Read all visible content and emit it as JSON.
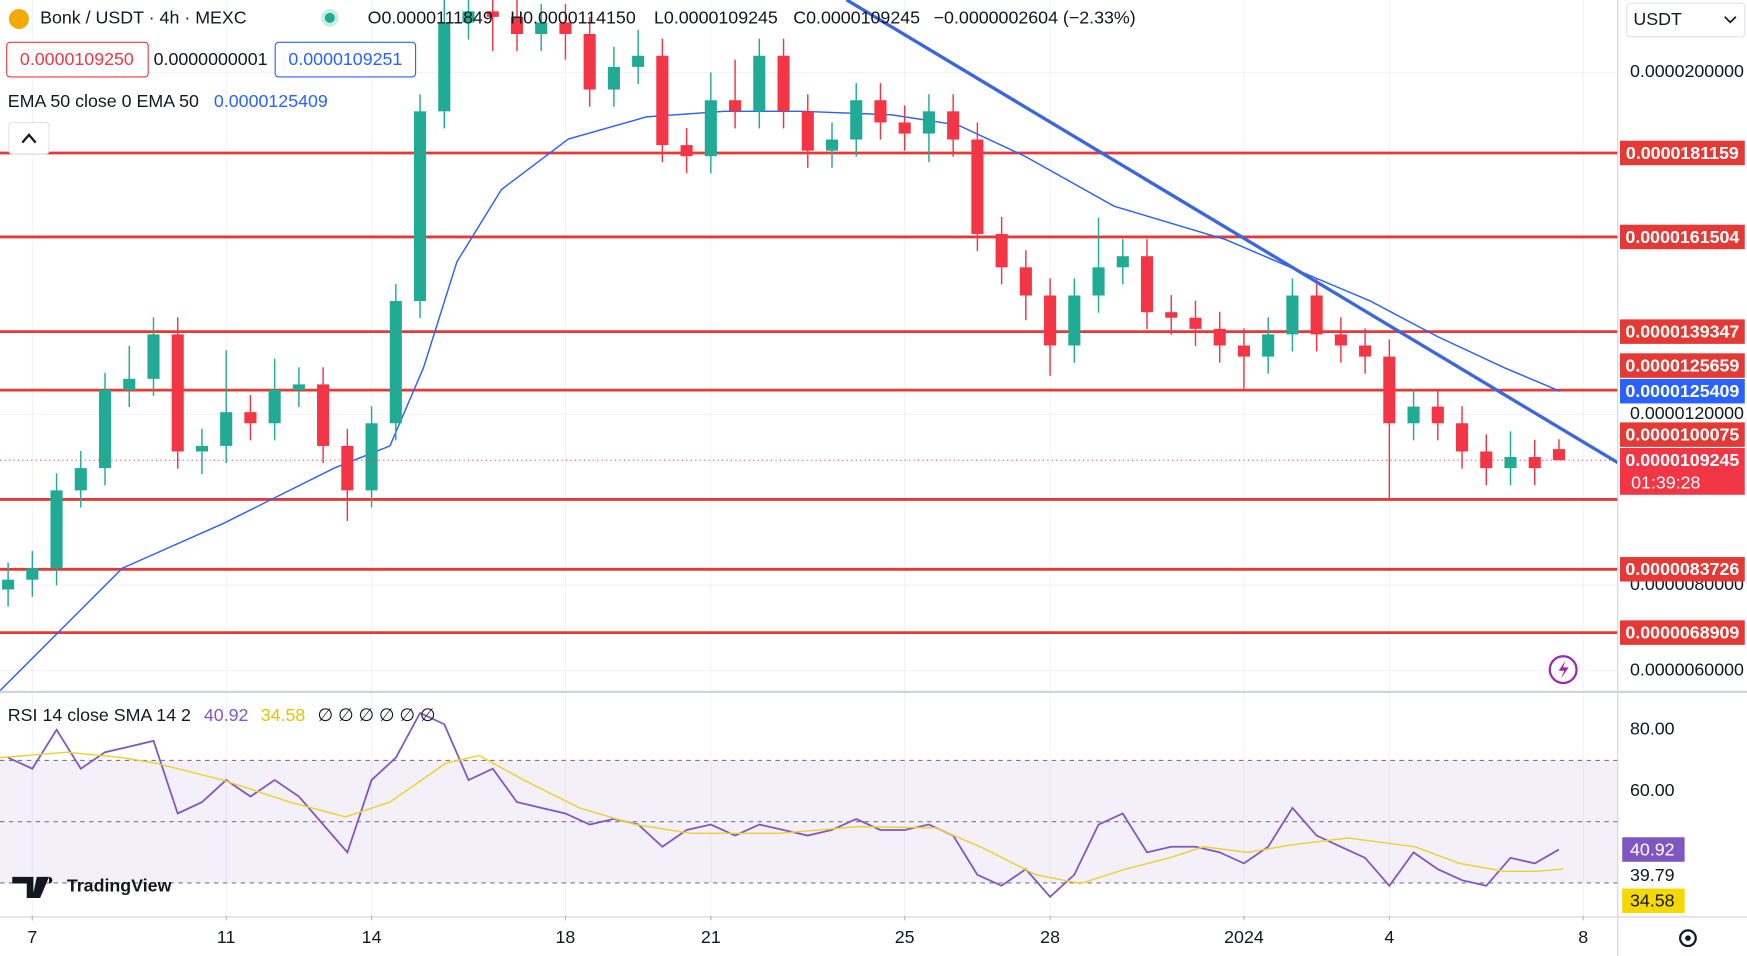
{
  "header": {
    "symbol": "Bonk / USDT · 4h · MEXC",
    "ohlc": [
      "O0.0000111849",
      "H0.0000114150",
      "L0.0000109245",
      "C0.0000109245",
      "−0.0000002604 (−2.33%)"
    ],
    "sell_price": "0.0000109250",
    "spread": "0.0000000001",
    "buy_price": "0.0000109251",
    "currency": "USDT",
    "logo": "TradingView"
  },
  "chart_data": [
    {
      "type": "candlestick",
      "legend": "EMA 50 close 0 EMA 50",
      "up_color": "#22ab94",
      "down_color": "#f23645",
      "grid": true,
      "xlim": [
        6.333,
        39.713
      ],
      "ylim": [
        5.529e-06,
        2.1695e-05
      ],
      "yticks": [
        {
          "value": 2e-05,
          "label": "0.0000200000"
        },
        {
          "value": 1.2e-05,
          "label": "0.0000120000"
        },
        {
          "value": 8e-06,
          "label": "0.0000080000"
        },
        {
          "value": 6e-06,
          "label": "0.0000060000"
        }
      ],
      "x": [
        6.5,
        7,
        7.5,
        8,
        8.5,
        9,
        9.5,
        10,
        10.5,
        11,
        11.5,
        12,
        12.5,
        13,
        13.5,
        14,
        14.5,
        15,
        15.5,
        16,
        16.5,
        17,
        17.5,
        18,
        18.5,
        19,
        19.5,
        20,
        20.5,
        21,
        21.5,
        22,
        22.5,
        23,
        23.5,
        24,
        24.5,
        25,
        25.5,
        26,
        26.5,
        27,
        27.5,
        28,
        28.5,
        29,
        29.5,
        30,
        30.5,
        31,
        31.5,
        32,
        32.5,
        33,
        33.5,
        34,
        34.5,
        35,
        35.5,
        36,
        36.5,
        37,
        37.5,
        38,
        38.5
      ],
      "open": [
        7.9e-06,
        8.13e-06,
        8.4e-06,
        1.022e-05,
        1.074e-05,
        1.257e-05,
        1.283e-05,
        1.387e-05,
        1.113e-05,
        1.126e-05,
        1.205e-05,
        1.179e-05,
        1.257e-05,
        1.27e-05,
        1.126e-05,
        1.022e-05,
        1.179e-05,
        1.465e-05,
        1.909e-05,
        2.117e-05,
        2.143e-05,
        2.13e-05,
        2.09e-05,
        2.117e-05,
        2.09e-05,
        1.96e-05,
        2.013e-05,
        2.039e-05,
        1.83e-05,
        1.804e-05,
        1.935e-05,
        1.909e-05,
        2.039e-05,
        1.909e-05,
        1.817e-05,
        1.843e-05,
        1.935e-05,
        1.883e-05,
        1.857e-05,
        1.909e-05,
        1.843e-05,
        1.622e-05,
        1.544e-05,
        1.478e-05,
        1.361e-05,
        1.478e-05,
        1.544e-05,
        1.57e-05,
        1.439e-05,
        1.426e-05,
        1.4e-05,
        1.361e-05,
        1.335e-05,
        1.387e-05,
        1.478e-05,
        1.387e-05,
        1.361e-05,
        1.335e-05,
        1.179e-05,
        1.218e-05,
        1.179e-05,
        1.113e-05,
        1.074e-05,
        1.1e-05,
        1.11849e-05
      ],
      "high": [
        8.53e-06,
        8.8e-06,
        1.062e-05,
        1.114e-05,
        1.297e-05,
        1.36e-05,
        1.427e-05,
        1.427e-05,
        1.166e-05,
        1.35e-05,
        1.245e-05,
        1.33e-05,
        1.31e-05,
        1.31e-05,
        1.166e-05,
        1.219e-05,
        1.505e-05,
        1.949e-05,
        2.19e-05,
        2.19e-05,
        2.19e-05,
        2.17e-05,
        2.16e-05,
        2.16e-05,
        2.13e-05,
        2.06e-05,
        2.1e-05,
        2.079e-05,
        1.87e-05,
        2e-05,
        2.03e-05,
        2.079e-05,
        2.079e-05,
        1.949e-05,
        1.883e-05,
        1.975e-05,
        1.975e-05,
        1.923e-05,
        1.949e-05,
        1.949e-05,
        1.883e-05,
        1.662e-05,
        1.584e-05,
        1.518e-05,
        1.518e-05,
        1.66e-05,
        1.61e-05,
        1.61e-05,
        1.479e-05,
        1.466e-05,
        1.44e-05,
        1.401e-05,
        1.427e-05,
        1.518e-05,
        1.518e-05,
        1.427e-05,
        1.401e-05,
        1.375e-05,
        1.258e-05,
        1.258e-05,
        1.219e-05,
        1.153e-05,
        1.16e-05,
        1.14e-05,
        1.1415e-05
      ],
      "low": [
        7.5e-06,
        7.73e-06,
        8e-06,
        9.82e-06,
        1.034e-05,
        1.217e-05,
        1.243e-05,
        1.073e-05,
        1.06e-05,
        1.086e-05,
        1.139e-05,
        1.139e-05,
        1.217e-05,
        1.086e-05,
        9.5e-06,
        9.82e-06,
        1.139e-05,
        1.425e-05,
        1.869e-05,
        2.077e-05,
        2.05e-05,
        2.05e-05,
        2.05e-05,
        2.03e-05,
        1.92e-05,
        1.92e-05,
        1.973e-05,
        1.79e-05,
        1.764e-05,
        1.764e-05,
        1.869e-05,
        1.869e-05,
        1.869e-05,
        1.777e-05,
        1.777e-05,
        1.803e-05,
        1.843e-05,
        1.817e-05,
        1.79e-05,
        1.803e-05,
        1.582e-05,
        1.504e-05,
        1.42e-05,
        1.29e-05,
        1.321e-05,
        1.438e-05,
        1.504e-05,
        1.399e-05,
        1.386e-05,
        1.36e-05,
        1.321e-05,
        1.26e-05,
        1.295e-05,
        1.347e-05,
        1.347e-05,
        1.321e-05,
        1.295e-05,
        1e-05,
        1.139e-05,
        1.139e-05,
        1.073e-05,
        1.034e-05,
        1.034e-05,
        1.034e-05,
        1.09245e-05
      ],
      "close": [
        8.13e-06,
        8.4e-06,
        1.022e-05,
        1.074e-05,
        1.257e-05,
        1.283e-05,
        1.387e-05,
        1.113e-05,
        1.126e-05,
        1.205e-05,
        1.179e-05,
        1.257e-05,
        1.27e-05,
        1.126e-05,
        1.022e-05,
        1.179e-05,
        1.465e-05,
        1.909e-05,
        2.117e-05,
        2.143e-05,
        2.13e-05,
        2.09e-05,
        2.117e-05,
        2.09e-05,
        1.96e-05,
        2.013e-05,
        2.039e-05,
        1.83e-05,
        1.804e-05,
        1.935e-05,
        1.909e-05,
        2.039e-05,
        1.909e-05,
        1.817e-05,
        1.843e-05,
        1.935e-05,
        1.883e-05,
        1.857e-05,
        1.909e-05,
        1.843e-05,
        1.622e-05,
        1.544e-05,
        1.478e-05,
        1.361e-05,
        1.478e-05,
        1.544e-05,
        1.57e-05,
        1.439e-05,
        1.426e-05,
        1.4e-05,
        1.361e-05,
        1.335e-05,
        1.387e-05,
        1.478e-05,
        1.387e-05,
        1.361e-05,
        1.335e-05,
        1.179e-05,
        1.218e-05,
        1.179e-05,
        1.113e-05,
        1.074e-05,
        1.1e-05,
        1.074e-05,
        1.09245e-05
      ],
      "last_label": "0.0000109245",
      "countdown": "01:39:28",
      "ema": {
        "color": "#2962ff",
        "value_label": "0.0000125409",
        "x": [
          6.33,
          8.86,
          10.93,
          13.23,
          14.38,
          15.07,
          15.76,
          16.68,
          18.06,
          19.67,
          21.28,
          22.89,
          24.72,
          26.1,
          27.48,
          29.32,
          31.62,
          33.23,
          34.61,
          35.99,
          37.37,
          38.52
        ],
        "values": [
          5.53e-06,
          8.4e-06,
          9.44e-06,
          1.074e-05,
          1.126e-05,
          1.309e-05,
          1.557e-05,
          1.726e-05,
          1.844e-05,
          1.896e-05,
          1.909e-05,
          1.909e-05,
          1.901e-05,
          1.877e-05,
          1.804e-05,
          1.687e-05,
          1.609e-05,
          1.531e-05,
          1.465e-05,
          1.382e-05,
          1.309e-05,
          1.25409e-05
        ]
      },
      "trendline": {
        "color": "#3a66e0",
        "x": [
          23.8,
          39.71
        ],
        "values": [
          2.17e-05,
          1.087e-05
        ]
      },
      "level_color": "#e53935",
      "levels": [
        {
          "value": 1.81159e-05,
          "label": "0.0000181159"
        },
        {
          "value": 1.61504e-05,
          "label": "0.0000161504"
        },
        {
          "value": 1.39347e-05,
          "label": "0.0000139347"
        },
        {
          "value": 1.25659e-05,
          "label": "0.0000125659"
        },
        {
          "value": 1.00075e-05,
          "label": "0.0000100075"
        },
        {
          "value": 8.3726e-06,
          "label": "0.0000083726"
        },
        {
          "value": 6.8909e-06,
          "label": "0.0000068909"
        }
      ]
    },
    {
      "type": "line",
      "legend": "RSI 14 close SMA 14 2",
      "na": "∅ ∅ ∅ ∅ ∅ ∅",
      "xlim": [
        6.333,
        39.713
      ],
      "ylim": [
        19.27,
        92
      ],
      "yticks": [
        {
          "value": 80,
          "label": "80.00"
        },
        {
          "value": 60,
          "label": "60.00"
        }
      ],
      "xticks": [
        7,
        11,
        14,
        18,
        21,
        25,
        28,
        {
          "value": 32,
          "label": "2024"
        },
        {
          "value": 35,
          "label": "4"
        },
        {
          "value": 39,
          "label": "8"
        }
      ],
      "bands": [
        30,
        50,
        70
      ],
      "band_color": "#7e57c2",
      "series": [
        {
          "color": "#7e57c2",
          "x": [
            6.5,
            7,
            7.5,
            8,
            8.5,
            9,
            9.5,
            10,
            10.5,
            11,
            11.5,
            12,
            12.5,
            13,
            13.5,
            14,
            14.5,
            15,
            15.5,
            16,
            16.5,
            17,
            17.5,
            18,
            18.5,
            19,
            19.5,
            20,
            20.5,
            21,
            21.5,
            22,
            22.5,
            23,
            23.5,
            24,
            24.5,
            25,
            25.5,
            26,
            26.5,
            27,
            27.5,
            28,
            28.5,
            29,
            29.5,
            30,
            30.5,
            31,
            31.5,
            32,
            32.5,
            33,
            33.5,
            34,
            34.5,
            35,
            35.5,
            36,
            36.5,
            37,
            37.5,
            38,
            38.5
          ],
          "values": [
            70.9,
            67.3,
            80,
            67.3,
            72.7,
            74.5,
            76.4,
            52.7,
            56.4,
            63.6,
            58.2,
            63.6,
            58.2,
            49.1,
            40,
            63.6,
            70.9,
            85.5,
            81.8,
            63.6,
            67.3,
            56.4,
            54.5,
            52.7,
            49.1,
            50.9,
            49.1,
            41.8,
            47.3,
            49.1,
            45.5,
            49.1,
            47.3,
            45.5,
            47.3,
            50.9,
            47.3,
            47.3,
            49.1,
            45.5,
            32.7,
            29.1,
            34.5,
            25.5,
            32.7,
            49.1,
            52.7,
            40,
            41.8,
            41.8,
            40,
            36.4,
            41.8,
            54.5,
            45.5,
            41.8,
            38.2,
            29.1,
            40,
            34.5,
            30.9,
            29.1,
            38.2,
            36.4,
            40.92
          ]
        },
        {
          "color": "#f0d030",
          "x": [
            6.33,
            7.71,
            8.86,
            9.55,
            10.93,
            12.31,
            13.46,
            14.38,
            15.53,
            16.22,
            17.14,
            18.29,
            19.44,
            20.59,
            22.43,
            24.03,
            25.64,
            26.56,
            27.71,
            28.63,
            29.55,
            30.47,
            31.16,
            32.08,
            33.0,
            34.15,
            35.53,
            36.45,
            37.37,
            38.06,
            38.59
          ],
          "values": [
            70.9,
            72.7,
            70.9,
            69.1,
            63.6,
            56.4,
            51.6,
            56.4,
            69.1,
            71.6,
            63.6,
            54.5,
            49.1,
            46.2,
            46.2,
            48.4,
            48.0,
            41.8,
            32.7,
            29.8,
            34.5,
            38.2,
            41.8,
            40,
            42.5,
            44.7,
            41.8,
            36.4,
            33.8,
            33.8,
            34.58
          ]
        }
      ],
      "axis_marks": [
        {
          "value": 40.92,
          "label": "40.92",
          "color": "#7e57c2"
        },
        {
          "value": 39.79,
          "label": "39.79"
        },
        {
          "value": 34.58,
          "label": "34.58",
          "color": "#f5d800"
        }
      ]
    }
  ]
}
